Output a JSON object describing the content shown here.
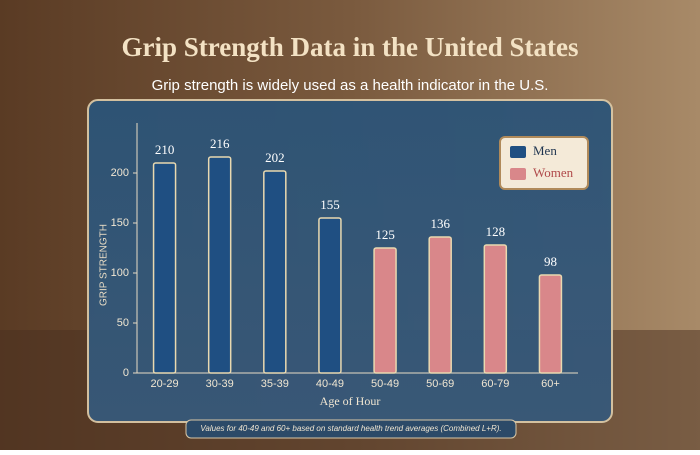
{
  "chart_data": {
    "type": "bar",
    "title": "Grip Strength Data in the United States",
    "subtitle": "Grip strength is widely used as a health indicator in the U.S.",
    "y_label": "GRIP STRENGTH",
    "x_label": "Age of Hour",
    "footnote": "Values for 40-49 and 60+ based on standard health trend averages (Combined L+R).",
    "categories": [
      "20-29",
      "30-39",
      "35-39",
      "40-49",
      "50-49",
      "50-69",
      "60-79",
      "60+"
    ],
    "series": [
      {
        "name": "Men",
        "color": "#1f4f82",
        "values": [
          210,
          216,
          202,
          155,
          null,
          null,
          null,
          null
        ]
      },
      {
        "name": "Women",
        "color": "#d9878a",
        "values": [
          null,
          null,
          null,
          null,
          125,
          136,
          128,
          98
        ]
      }
    ],
    "ylim": [
      0,
      250
    ],
    "yticks": [
      0,
      50,
      100,
      150,
      200
    ],
    "legend": "top-right"
  }
}
